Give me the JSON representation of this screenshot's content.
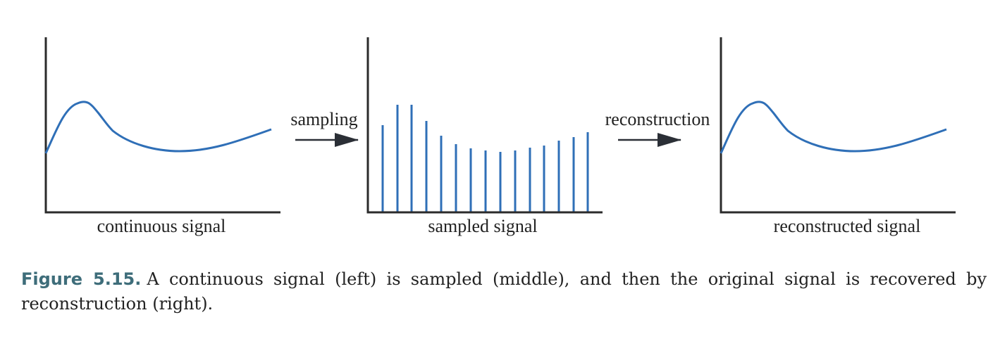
{
  "panels": {
    "continuous": {
      "label": "continuous signal"
    },
    "sampled": {
      "label": "sampled signal"
    },
    "reconstructed": {
      "label": "reconstructed signal"
    }
  },
  "arrows": {
    "sampling": {
      "label": "sampling"
    },
    "reconstruction": {
      "label": "reconstruction"
    }
  },
  "colors": {
    "signal": "#2f6fb7",
    "axis": "#2b2b2b",
    "arrow": "#2b2f36",
    "caption_number": "#3e6d7a"
  },
  "caption": {
    "number": "Figure 5.15.",
    "text": "A continuous signal (left) is sampled (middle), and then the original signal is recovered by reconstruction (right)."
  }
}
